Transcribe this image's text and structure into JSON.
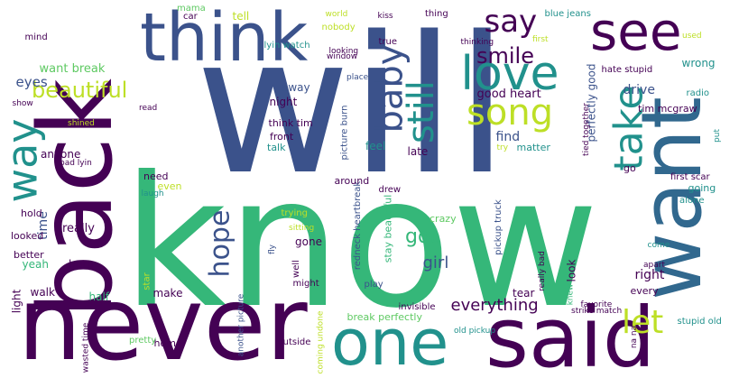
{
  "palette": {
    "purple": "#440154",
    "navy": "#3b528b",
    "teal": "#21918c",
    "green": "#35b779",
    "lime": "#bddf26",
    "yellow": "#fde725",
    "slate": "#31688e",
    "mint": "#5ec962"
  },
  "words": [
    {
      "text": "will",
      "color": "#3b528b"
    },
    {
      "text": "know",
      "color": "#35b779"
    },
    {
      "text": "never",
      "color": "#440154"
    },
    {
      "text": "back",
      "color": "#440154"
    },
    {
      "text": "want",
      "color": "#31688e"
    },
    {
      "text": "think",
      "color": "#3b528b"
    },
    {
      "text": "see",
      "color": "#440154"
    },
    {
      "text": "one",
      "color": "#21918c"
    },
    {
      "text": "said",
      "color": "#440154"
    },
    {
      "text": "say",
      "color": "#440154"
    },
    {
      "text": "love",
      "color": "#21918c"
    },
    {
      "text": "song",
      "color": "#bddf26"
    },
    {
      "text": "way",
      "color": "#21918c"
    },
    {
      "text": "baby",
      "color": "#3b528b"
    },
    {
      "text": "still",
      "color": "#21918c"
    },
    {
      "text": "take",
      "color": "#21918c"
    },
    {
      "text": "beautiful",
      "color": "#bddf26"
    },
    {
      "text": "smile",
      "color": "#440154"
    },
    {
      "text": "hope",
      "color": "#3b528b"
    },
    {
      "text": "let",
      "color": "#bddf26"
    },
    {
      "text": "got",
      "color": "#35b779"
    },
    {
      "text": "everything",
      "color": "#440154"
    },
    {
      "text": "girl",
      "color": "#3b528b"
    },
    {
      "text": "eyes",
      "color": "#3b528b"
    },
    {
      "text": "want break",
      "color": "#5ec962"
    },
    {
      "text": "good heart",
      "color": "#440154"
    },
    {
      "text": "drive",
      "color": "#3b528b"
    },
    {
      "text": "find",
      "color": "#3b528b"
    },
    {
      "text": "perfectly good",
      "color": "#3b528b"
    },
    {
      "text": "tim mcgraw",
      "color": "#440154"
    },
    {
      "text": "wrong",
      "color": "#21918c"
    },
    {
      "text": "right",
      "color": "#440154"
    },
    {
      "text": "time",
      "color": "#3b528b"
    },
    {
      "text": "really",
      "color": "#440154"
    },
    {
      "text": "anyone",
      "color": "#440154"
    },
    {
      "text": "night",
      "color": "#440154"
    },
    {
      "text": "away",
      "color": "#3b528b"
    },
    {
      "text": "think tim",
      "color": "#440154"
    },
    {
      "text": "front",
      "color": "#440154"
    },
    {
      "text": "talk",
      "color": "#21918c"
    },
    {
      "text": "feel",
      "color": "#21918c"
    },
    {
      "text": "late",
      "color": "#440154"
    },
    {
      "text": "matter",
      "color": "#21918c"
    },
    {
      "text": "crazy",
      "color": "#5ec962"
    },
    {
      "text": "pickup truck",
      "color": "#3b528b"
    },
    {
      "text": "look",
      "color": "#440154"
    },
    {
      "text": "tear",
      "color": "#440154"
    },
    {
      "text": "break perfectly",
      "color": "#5ec962"
    },
    {
      "text": "stay beautiful",
      "color": "#35b779"
    },
    {
      "text": "redneck heartbreak",
      "color": "#3b528b"
    },
    {
      "text": "gone",
      "color": "#440154"
    },
    {
      "text": "make",
      "color": "#440154"
    },
    {
      "text": "burn",
      "color": "#440154"
    },
    {
      "text": "half",
      "color": "#35b779"
    },
    {
      "text": "walk",
      "color": "#440154"
    },
    {
      "text": "light",
      "color": "#440154"
    },
    {
      "text": "better",
      "color": "#440154"
    },
    {
      "text": "yeah",
      "color": "#35b779"
    },
    {
      "text": "looked",
      "color": "#440154"
    },
    {
      "text": "hold",
      "color": "#440154"
    },
    {
      "text": "need",
      "color": "#440154"
    },
    {
      "text": "even",
      "color": "#bddf26"
    },
    {
      "text": "laugh",
      "color": "#21918c"
    },
    {
      "text": "going",
      "color": "#21918c"
    },
    {
      "text": "alone",
      "color": "#21918c"
    },
    {
      "text": "first scar",
      "color": "#440154"
    },
    {
      "text": "go",
      "color": "#440154"
    },
    {
      "text": "every",
      "color": "#440154"
    },
    {
      "text": "knew",
      "color": "#35b779"
    },
    {
      "text": "favorite",
      "color": "#440154"
    },
    {
      "text": "strike match",
      "color": "#440154"
    },
    {
      "text": "stupid old",
      "color": "#21918c"
    },
    {
      "text": "old pickup",
      "color": "#21918c"
    },
    {
      "text": "na na",
      "color": "#440154"
    },
    {
      "text": "invisible",
      "color": "#440154"
    },
    {
      "text": "coming undone",
      "color": "#bddf26"
    },
    {
      "text": "outside",
      "color": "#440154"
    },
    {
      "text": "well",
      "color": "#440154"
    },
    {
      "text": "might",
      "color": "#440154"
    },
    {
      "text": "fly",
      "color": "#3b528b"
    },
    {
      "text": "trying",
      "color": "#bddf26"
    },
    {
      "text": "sitting",
      "color": "#bddf26"
    },
    {
      "text": "star",
      "color": "#bddf26"
    },
    {
      "text": "home",
      "color": "#440154"
    },
    {
      "text": "pretty",
      "color": "#5ec962"
    },
    {
      "text": "wasted time",
      "color": "#440154"
    },
    {
      "text": "another picture",
      "color": "#3b528b"
    },
    {
      "text": "play",
      "color": "#3b528b"
    },
    {
      "text": "drew",
      "color": "#440154"
    },
    {
      "text": "around",
      "color": "#440154"
    },
    {
      "text": "try",
      "color": "#bddf26"
    },
    {
      "text": "picture burn",
      "color": "#3b528b"
    },
    {
      "text": "place",
      "color": "#3b528b"
    },
    {
      "text": "window",
      "color": "#440154"
    },
    {
      "text": "looking",
      "color": "#440154"
    },
    {
      "text": "lyin watch",
      "color": "#21918c"
    },
    {
      "text": "nobody",
      "color": "#bddf26"
    },
    {
      "text": "world",
      "color": "#bddf26"
    },
    {
      "text": "true",
      "color": "#440154"
    },
    {
      "text": "kiss",
      "color": "#440154"
    },
    {
      "text": "thing",
      "color": "#440154"
    },
    {
      "text": "thinking",
      "color": "#440154"
    },
    {
      "text": "blue jeans",
      "color": "#21918c"
    },
    {
      "text": "first",
      "color": "#bddf26"
    },
    {
      "text": "used",
      "color": "#bddf26"
    },
    {
      "text": "hate stupid",
      "color": "#440154"
    },
    {
      "text": "tied together",
      "color": "#440154"
    },
    {
      "text": "radio",
      "color": "#21918c"
    },
    {
      "text": "put",
      "color": "#21918c"
    },
    {
      "text": "come",
      "color": "#21918c"
    },
    {
      "text": "apart",
      "color": "#440154"
    },
    {
      "text": "really bad",
      "color": "#440154"
    },
    {
      "text": "mama",
      "color": "#5ec962"
    },
    {
      "text": "car",
      "color": "#440154"
    },
    {
      "text": "tell",
      "color": "#bddf26"
    },
    {
      "text": "mind",
      "color": "#440154"
    },
    {
      "text": "show",
      "color": "#440154"
    },
    {
      "text": "shined",
      "color": "#bddf26"
    },
    {
      "text": "read",
      "color": "#440154"
    },
    {
      "text": "bad lyin",
      "color": "#440154"
    }
  ]
}
